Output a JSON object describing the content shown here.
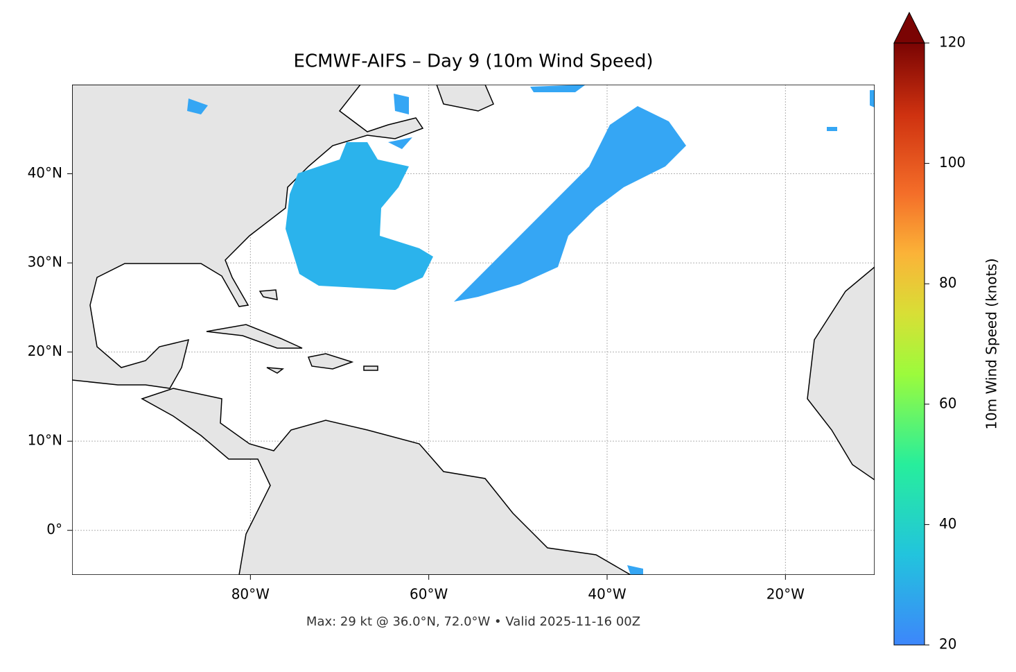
{
  "map": {
    "title": "ECMWF-AIFS – Day 9 (10m Wind Speed)",
    "lonlim": [
      -100,
      -10
    ],
    "latlim": [
      -5,
      50
    ],
    "lon_ticks": [
      {
        "value": -80,
        "label": "80°W"
      },
      {
        "value": -60,
        "label": "60°W"
      },
      {
        "value": -40,
        "label": "40°W"
      },
      {
        "value": -20,
        "label": "20°W"
      }
    ],
    "lat_ticks": [
      {
        "value": 0,
        "label": "0°"
      },
      {
        "value": 10,
        "label": "10°N"
      },
      {
        "value": 20,
        "label": "20°N"
      },
      {
        "value": 30,
        "label": "30°N"
      },
      {
        "value": 40,
        "label": "40°N"
      }
    ],
    "colorbar": {
      "label": "10m Wind Speed (knots)",
      "lim": [
        20,
        120
      ],
      "ticks": [
        20,
        40,
        60,
        80,
        100,
        120
      ]
    },
    "footer": "Max: 29 kt @ 36.0°N, 72.0°W • Valid 2025-11-16 00Z"
  }
}
